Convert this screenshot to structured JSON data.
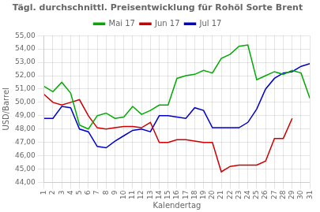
{
  "chart_data": {
    "type": "line",
    "title": "Tägl. durchschnittl. Preisentwicklung für Rohöl Sorte Brent",
    "xlabel": "Kalendertag",
    "ylabel": "USD/Barrel",
    "x": [
      1,
      2,
      3,
      4,
      5,
      6,
      7,
      8,
      9,
      10,
      11,
      12,
      13,
      14,
      15,
      16,
      17,
      18,
      19,
      20,
      21,
      22,
      23,
      24,
      25,
      26,
      27,
      28,
      29,
      30,
      31
    ],
    "xlim": [
      1,
      31
    ],
    "xticks": [
      1,
      2,
      3,
      4,
      5,
      6,
      7,
      8,
      9,
      10,
      11,
      12,
      13,
      14,
      15,
      16,
      17,
      18,
      19,
      20,
      21,
      22,
      23,
      24,
      25,
      26,
      27,
      28,
      29,
      30,
      31
    ],
    "ylim": [
      44.0,
      55.0
    ],
    "yticks": [
      {
        "value": 44.0,
        "label": "44,00"
      },
      {
        "value": 45.0,
        "label": "45,00"
      },
      {
        "value": 46.0,
        "label": "46,00"
      },
      {
        "value": 47.0,
        "label": "47,00"
      },
      {
        "value": 48.0,
        "label": "48,00"
      },
      {
        "value": 49.0,
        "label": "49,00"
      },
      {
        "value": 50.0,
        "label": "50,00"
      },
      {
        "value": 51.0,
        "label": "51,00"
      },
      {
        "value": 52.0,
        "label": "52,00"
      },
      {
        "value": 53.0,
        "label": "53,00"
      },
      {
        "value": 54.0,
        "label": "54,00"
      },
      {
        "value": 55.0,
        "label": "55,00"
      }
    ],
    "grid": true,
    "legend": "top",
    "series": [
      {
        "name": "Mai 17",
        "color": "#00AA00",
        "values": [
          51.2,
          50.8,
          51.5,
          50.7,
          48.3,
          48.0,
          49.0,
          49.2,
          48.8,
          48.9,
          49.7,
          49.1,
          49.4,
          49.8,
          49.8,
          51.8,
          52.0,
          52.1,
          52.4,
          52.2,
          53.3,
          53.6,
          54.2,
          54.3,
          51.7,
          52.0,
          52.3,
          52.1,
          52.4,
          52.2,
          50.3
        ]
      },
      {
        "name": "Jun 17",
        "color": "#CC0000",
        "values": [
          50.6,
          50.0,
          49.8,
          50.0,
          50.2,
          49.0,
          48.1,
          48.0,
          48.1,
          48.2,
          48.2,
          48.1,
          48.5,
          47.0,
          47.0,
          47.2,
          47.2,
          47.1,
          47.0,
          47.0,
          44.8,
          45.2,
          45.3,
          45.3,
          45.3,
          45.6,
          47.3,
          47.3,
          48.8,
          null,
          null
        ]
      },
      {
        "name": "Jul 17",
        "color": "#0000CC",
        "values": [
          48.8,
          48.8,
          49.7,
          49.6,
          48.0,
          47.8,
          46.7,
          46.6,
          47.1,
          47.5,
          47.9,
          48.0,
          47.8,
          49.0,
          49.0,
          48.9,
          48.8,
          49.6,
          49.4,
          48.1,
          48.1,
          48.1,
          48.1,
          48.5,
          49.5,
          51.0,
          51.8,
          52.2,
          52.3,
          52.7,
          52.9
        ]
      }
    ]
  }
}
